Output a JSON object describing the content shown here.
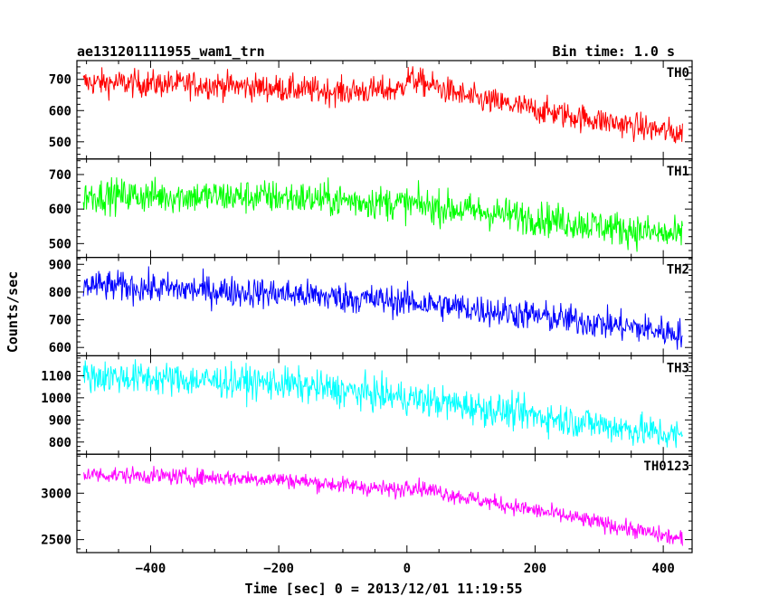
{
  "chart_data": {
    "type": "line",
    "title": "ae131201111955_wam1_trn",
    "bin_time": "Bin time: 1.0 s",
    "xlabel": "Time [sec] 0 = 2013/12/01 11:19:55",
    "ylabel": "Counts/sec",
    "xlim": [
      -515,
      445
    ],
    "xticks": [
      -400,
      -200,
      0,
      200,
      400
    ],
    "x_range_data": [
      -505,
      430
    ],
    "panels": [
      {
        "name": "TH0",
        "color": "#ff0000",
        "ylim": [
          445,
          760
        ],
        "yticks": [
          500,
          600,
          700
        ],
        "trend": [
          [
            -505,
            690
          ],
          [
            -300,
            682
          ],
          [
            -100,
            660
          ],
          [
            -10,
            668
          ],
          [
            0,
            705
          ],
          [
            100,
            640
          ],
          [
            250,
            585
          ],
          [
            430,
            525
          ]
        ],
        "noise": 22
      },
      {
        "name": "TH1",
        "color": "#00ff00",
        "ylim": [
          460,
          745
        ],
        "yticks": [
          500,
          600,
          700
        ],
        "trend": [
          [
            -505,
            640
          ],
          [
            -200,
            635
          ],
          [
            0,
            615
          ],
          [
            200,
            575
          ],
          [
            430,
            520
          ]
        ],
        "noise": 25
      },
      {
        "name": "TH2",
        "color": "#0000ff",
        "ylim": [
          570,
          925
        ],
        "yticks": [
          600,
          700,
          800,
          900
        ],
        "trend": [
          [
            -505,
            825
          ],
          [
            -200,
            795
          ],
          [
            0,
            765
          ],
          [
            200,
            715
          ],
          [
            430,
            650
          ]
        ],
        "noise": 28
      },
      {
        "name": "TH3",
        "color": "#00ffff",
        "ylim": [
          745,
          1190
        ],
        "yticks": [
          800,
          900,
          1000,
          1100
        ],
        "trend": [
          [
            -505,
            1100
          ],
          [
            -200,
            1065
          ],
          [
            0,
            1000
          ],
          [
            200,
            920
          ],
          [
            430,
            825
          ]
        ],
        "noise": 38
      },
      {
        "name": "TH0123",
        "color": "#ff00ff",
        "ylim": [
          2360,
          3420
        ],
        "yticks": [
          2500,
          3000
        ],
        "trend": [
          [
            -505,
            3205
          ],
          [
            -200,
            3150
          ],
          [
            -10,
            3030
          ],
          [
            0,
            3090
          ],
          [
            100,
            2940
          ],
          [
            250,
            2750
          ],
          [
            430,
            2500
          ]
        ],
        "noise": 45
      }
    ]
  }
}
